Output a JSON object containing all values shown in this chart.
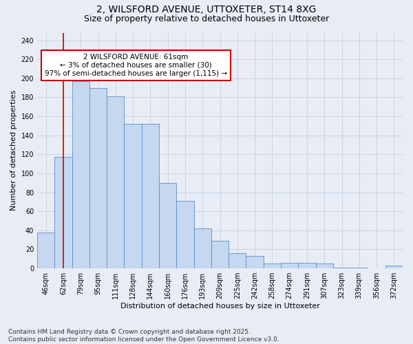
{
  "title1": "2, WILSFORD AVENUE, UTTOXETER, ST14 8XG",
  "title2": "Size of property relative to detached houses in Uttoxeter",
  "xlabel": "Distribution of detached houses by size in Uttoxeter",
  "ylabel": "Number of detached properties",
  "categories": [
    "46sqm",
    "62sqm",
    "79sqm",
    "95sqm",
    "111sqm",
    "128sqm",
    "144sqm",
    "160sqm",
    "176sqm",
    "193sqm",
    "209sqm",
    "225sqm",
    "242sqm",
    "258sqm",
    "274sqm",
    "291sqm",
    "307sqm",
    "323sqm",
    "339sqm",
    "356sqm",
    "372sqm"
  ],
  "values": [
    38,
    117,
    197,
    190,
    181,
    152,
    152,
    90,
    71,
    42,
    29,
    16,
    13,
    5,
    6,
    6,
    5,
    1,
    1,
    0,
    3
  ],
  "bar_color": "#c5d8f0",
  "bar_edge_color": "#5b8cc8",
  "vline_x": 1,
  "vline_color": "#cc0000",
  "annotation_text": "2 WILSFORD AVENUE: 61sqm\n← 3% of detached houses are smaller (30)\n97% of semi-detached houses are larger (1,115) →",
  "annotation_box_color": "#ffffff",
  "annotation_box_edge_color": "#cc0000",
  "ylim": [
    0,
    248
  ],
  "yticks": [
    0,
    20,
    40,
    60,
    80,
    100,
    120,
    140,
    160,
    180,
    200,
    220,
    240
  ],
  "grid_color": "#c8d4e8",
  "bg_color": "#e8ecf4",
  "footer": "Contains HM Land Registry data © Crown copyright and database right 2025.\nContains public sector information licensed under the Open Government Licence v3.0.",
  "title_fontsize": 10,
  "subtitle_fontsize": 9,
  "axis_label_fontsize": 8,
  "tick_fontsize": 7,
  "footer_fontsize": 6.5,
  "annotation_fontsize": 7.5
}
